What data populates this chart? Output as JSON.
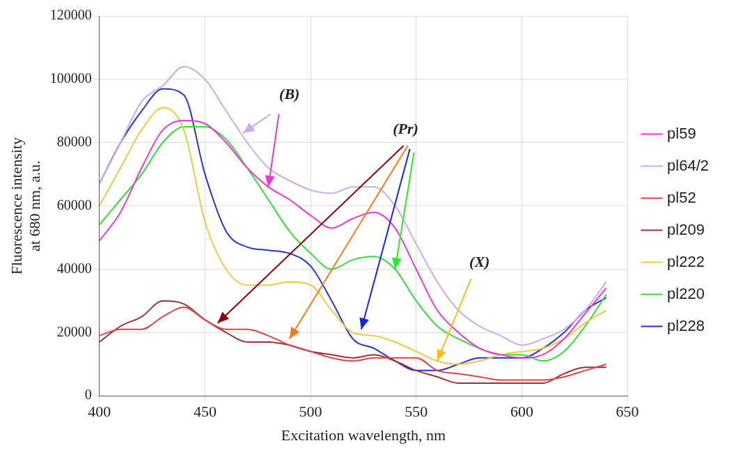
{
  "chart_data": {
    "type": "line",
    "xlabel": "Excitation wavelength, nm",
    "ylabel": "Fluorescence intensity\nat 680 nm, a.u.",
    "x": [
      400,
      410,
      420,
      430,
      440,
      450,
      460,
      470,
      480,
      490,
      500,
      510,
      520,
      530,
      540,
      550,
      560,
      570,
      580,
      590,
      600,
      610,
      620,
      630,
      640
    ],
    "xlim": [
      400,
      650
    ],
    "xticks": [
      400,
      450,
      500,
      550,
      600,
      650
    ],
    "ylim": [
      0,
      120000
    ],
    "yticks": [
      0,
      20000,
      40000,
      60000,
      80000,
      100000,
      120000
    ],
    "grid": true,
    "legend": "right",
    "marker": "none",
    "line_style": "solid",
    "series": [
      {
        "name": "pl59",
        "color": "#ee33dd",
        "values": [
          49000,
          58000,
          72000,
          84000,
          87000,
          86000,
          80000,
          72000,
          66000,
          62000,
          57000,
          53000,
          56000,
          58000,
          53000,
          40000,
          27000,
          20000,
          15000,
          13000,
          12000,
          13000,
          18000,
          26000,
          34000
        ]
      },
      {
        "name": "pl64/2",
        "color": "#c9aaf0",
        "values": [
          67000,
          80000,
          93000,
          98000,
          104000,
          100000,
          90000,
          80000,
          72000,
          68000,
          65000,
          64000,
          66000,
          66000,
          60000,
          48000,
          36000,
          27000,
          22000,
          19000,
          16000,
          18000,
          21000,
          27000,
          36000
        ]
      },
      {
        "name": "pl52",
        "color": "#dd4444",
        "values": [
          19000,
          21000,
          21000,
          25000,
          28000,
          24000,
          21000,
          21000,
          19000,
          16000,
          14000,
          12000,
          11000,
          12000,
          12000,
          12000,
          8000,
          7000,
          6000,
          5000,
          5000,
          5000,
          6000,
          8000,
          10000
        ]
      },
      {
        "name": "pl209",
        "color": "#993333",
        "values": [
          17000,
          22000,
          25000,
          30000,
          29000,
          24000,
          20000,
          17000,
          17000,
          16000,
          14000,
          13000,
          12000,
          13000,
          11000,
          8000,
          6000,
          4000,
          4000,
          4000,
          4000,
          4000,
          7000,
          9000,
          9000
        ]
      },
      {
        "name": "pl222",
        "color": "#f0c840",
        "values": [
          60000,
          72000,
          84000,
          91000,
          84000,
          55000,
          40000,
          35000,
          35000,
          36000,
          35000,
          27000,
          20000,
          19000,
          17000,
          14000,
          11000,
          10000,
          11000,
          13000,
          14000,
          15000,
          18000,
          23000,
          27000
        ]
      },
      {
        "name": "pl220",
        "color": "#33dd33",
        "values": [
          54000,
          62000,
          70000,
          80000,
          85000,
          85000,
          81000,
          72000,
          62000,
          52000,
          45000,
          40000,
          43000,
          44000,
          40000,
          30000,
          22000,
          18000,
          15000,
          13000,
          13000,
          11000,
          14000,
          22000,
          32000
        ]
      },
      {
        "name": "pl228",
        "color": "#2233dd",
        "values": [
          67000,
          80000,
          90000,
          97000,
          95000,
          70000,
          52000,
          47000,
          46000,
          45000,
          41000,
          30000,
          18000,
          15000,
          11000,
          8000,
          8000,
          10000,
          12000,
          12000,
          12000,
          15000,
          20000,
          27000,
          31000
        ]
      }
    ],
    "annotations": [
      {
        "text": "(B)",
        "x": 480,
        "y": 66000
      },
      {
        "text": "(Pr)",
        "x": 540,
        "y": 40000
      },
      {
        "text": "(X)",
        "x": 560,
        "y": 11000
      }
    ]
  }
}
